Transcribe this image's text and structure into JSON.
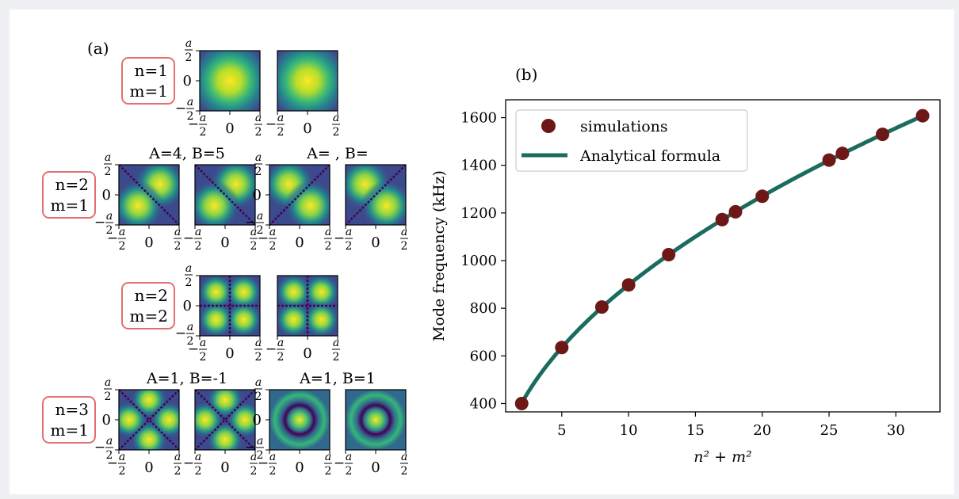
{
  "panel_a": {
    "label": "(a)",
    "rows": [
      {
        "mode": [
          "n=1",
          "m=1"
        ],
        "pair_titles": [],
        "tiles": [
          "center",
          "center"
        ]
      },
      {
        "mode": [
          "n=2",
          "m=1"
        ],
        "pair_titles": [
          "A=4,  B=5",
          "A=  ,  B="
        ],
        "tiles": [
          "diag1",
          "diag1",
          "diag2",
          "diag2"
        ]
      },
      {
        "mode": [
          "n=2",
          "m=2"
        ],
        "pair_titles": [],
        "tiles": [
          "quad",
          "quad"
        ]
      },
      {
        "mode": [
          "n=3",
          "m=1"
        ],
        "pair_titles": [
          "A=1,  B=-1",
          "A=1,  B=1"
        ],
        "tiles": [
          "xshape",
          "xshape",
          "ring",
          "ring"
        ]
      }
    ],
    "tick_labels": {
      "top": "a/2",
      "mid": "0",
      "bottom": "−a/2",
      "left": "−a/2",
      "center": "0",
      "right": "a/2"
    },
    "box_color": "#e27070"
  },
  "chart_data": {
    "type": "line",
    "panel_label": "(b)",
    "xlabel": "n² + m²",
    "ylabel": "Mode frequency (kHz)",
    "xlim": [
      0.8,
      33.3
    ],
    "ylim": [
      365,
      1675
    ],
    "xticks": [
      5,
      10,
      15,
      20,
      25,
      30
    ],
    "yticks": [
      400,
      600,
      800,
      1000,
      1200,
      1400,
      1600
    ],
    "series": [
      {
        "name": "simulations",
        "kind": "scatter",
        "color": "#6e1717",
        "x": [
          2,
          5,
          8,
          10,
          13,
          17,
          18,
          20,
          25,
          26,
          29,
          32
        ],
        "y": [
          400,
          635,
          805,
          898,
          1025,
          1172,
          1205,
          1270,
          1422,
          1450,
          1530,
          1608
        ]
      },
      {
        "name": "Analytical formula",
        "kind": "line",
        "color": "#1b6b5f",
        "formula_note": "f ∝ sqrt(n²+m²)",
        "x_range": [
          2,
          32
        ],
        "coef": 284.1
      }
    ],
    "legend_position": "top-left",
    "grid": false
  }
}
